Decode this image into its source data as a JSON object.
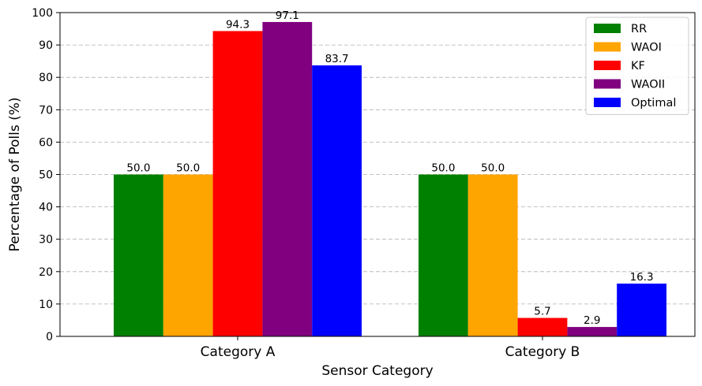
{
  "chart_data": {
    "type": "bar",
    "categories": [
      "Category A",
      "Category B"
    ],
    "series": [
      {
        "name": "RR",
        "color": "#008000",
        "values": [
          50.0,
          50.0
        ]
      },
      {
        "name": "WAOI",
        "color": "#ffa500",
        "values": [
          50.0,
          50.0
        ]
      },
      {
        "name": "KF",
        "color": "#ff0000",
        "values": [
          94.3,
          5.7
        ]
      },
      {
        "name": "WAOII",
        "color": "#800080",
        "values": [
          97.1,
          2.9
        ]
      },
      {
        "name": "Optimal",
        "color": "#0000ff",
        "values": [
          83.7,
          16.3
        ]
      }
    ],
    "data_labels": [
      [
        "50.0",
        "50.0"
      ],
      [
        "50.0",
        "50.0"
      ],
      [
        "94.3",
        "5.7"
      ],
      [
        "97.1",
        "2.9"
      ],
      [
        "83.7",
        "16.3"
      ]
    ],
    "title": "",
    "xlabel": "Sensor Category",
    "ylabel": "Percentage of Polls (%)",
    "ylim": [
      0,
      100
    ],
    "yticks": [
      "0",
      "10",
      "20",
      "30",
      "40",
      "50",
      "60",
      "70",
      "80",
      "90",
      "100"
    ],
    "grid": "horizontal-dashed",
    "legend_position": "top-right"
  }
}
